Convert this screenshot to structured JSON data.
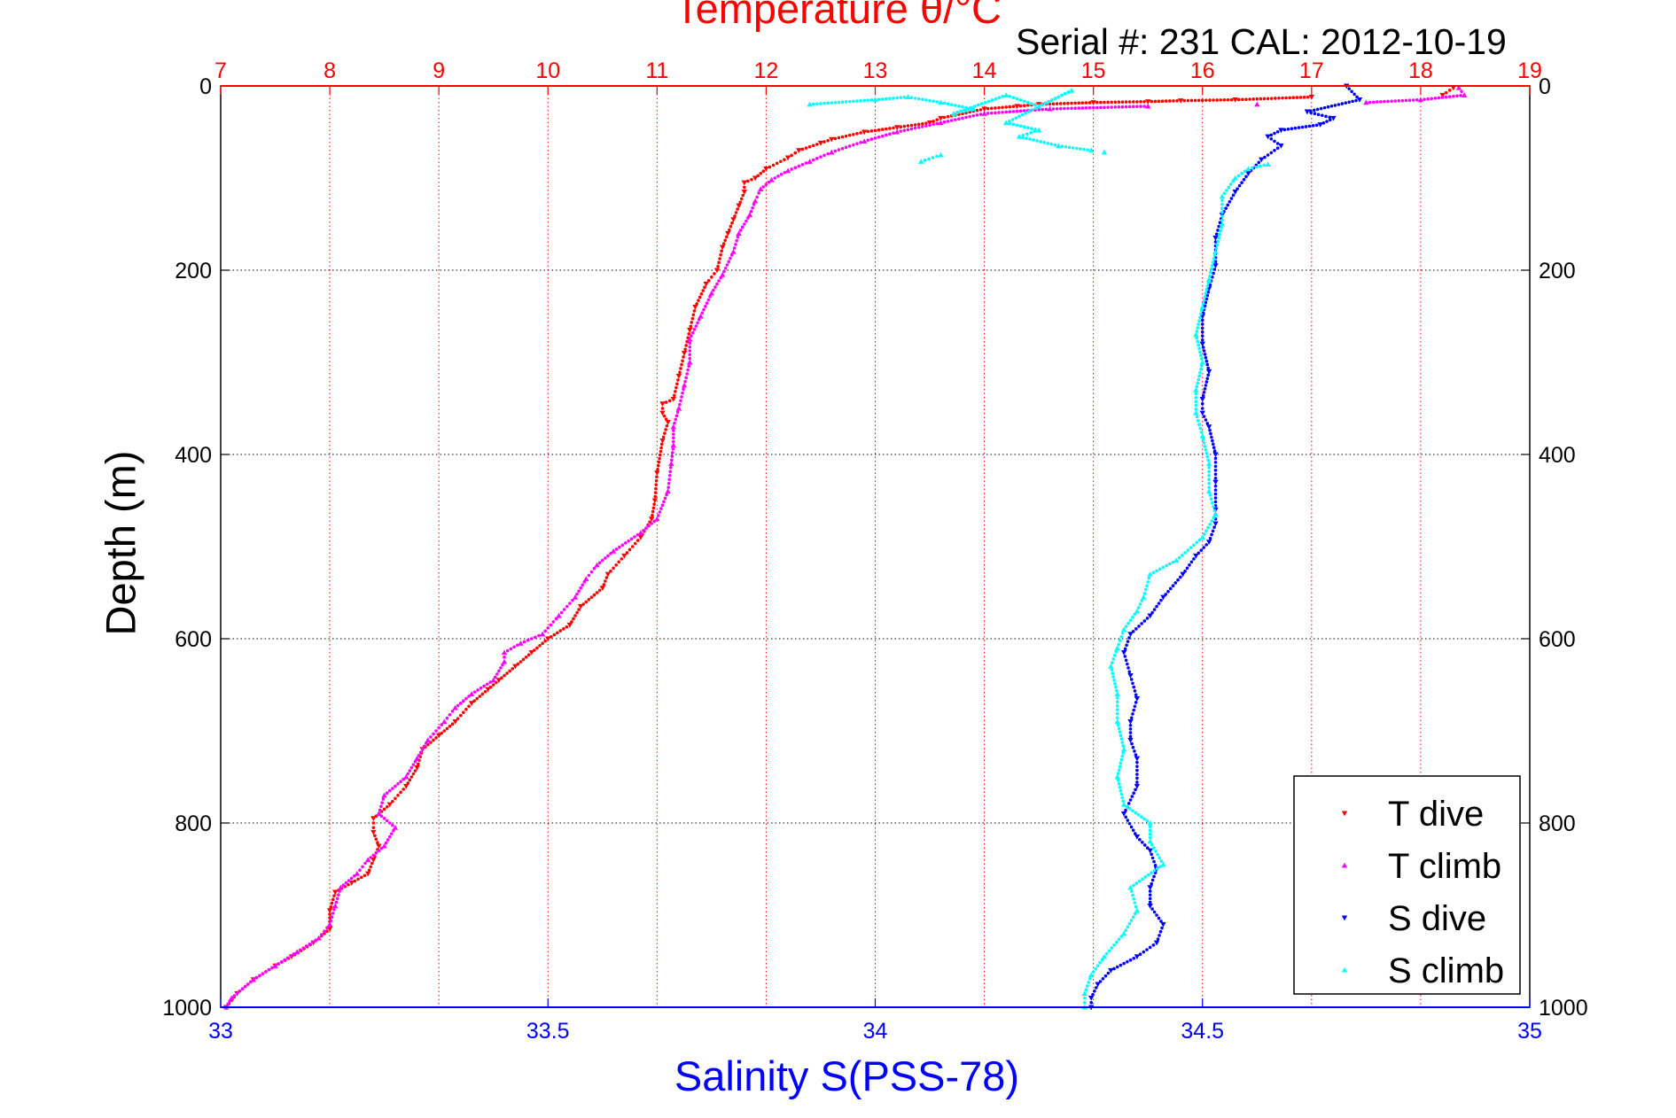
{
  "chart_data": {
    "type": "scatter",
    "title_temperature": "Temperature θ/°C",
    "serial_label": "Serial #: 231  CAL: 2012-10-19",
    "ylabel": "Depth (m)",
    "xlabel_bottom": "Salinity S(PSS-78)",
    "ylim": [
      0,
      1000
    ],
    "y_reversed": true,
    "y_ticks": [
      0,
      200,
      400,
      600,
      800,
      1000
    ],
    "xlim_temperature": [
      7,
      19
    ],
    "x_ticks_temperature": [
      7,
      8,
      9,
      10,
      11,
      12,
      13,
      14,
      15,
      16,
      17,
      18,
      19
    ],
    "xlim_salinity": [
      33,
      35
    ],
    "x_ticks_salinity": [
      33,
      33.5,
      34,
      34.5,
      35
    ],
    "grid": true,
    "legend_position": "bottom-right",
    "series": [
      {
        "name": "T dive",
        "axis": "temperature",
        "color": "#ff0000",
        "marker": "triangle-down",
        "points": [
          [
            18.3,
            2
          ],
          [
            18.2,
            10
          ],
          [
            17.0,
            12
          ],
          [
            16.3,
            15
          ],
          [
            15.8,
            16
          ],
          [
            15.5,
            17
          ],
          [
            15.0,
            18
          ],
          [
            14.5,
            20
          ],
          [
            14.3,
            22
          ],
          [
            14.0,
            25
          ],
          [
            13.6,
            35
          ],
          [
            13.5,
            40
          ],
          [
            13.2,
            45
          ],
          [
            12.9,
            50
          ],
          [
            12.6,
            58
          ],
          [
            12.5,
            62
          ],
          [
            12.3,
            70
          ],
          [
            12.2,
            78
          ],
          [
            12.0,
            90
          ],
          [
            11.9,
            100
          ],
          [
            11.8,
            105
          ],
          [
            11.8,
            115
          ],
          [
            11.75,
            130
          ],
          [
            11.7,
            145
          ],
          [
            11.65,
            160
          ],
          [
            11.6,
            175
          ],
          [
            11.55,
            200
          ],
          [
            11.45,
            215
          ],
          [
            11.35,
            240
          ],
          [
            11.3,
            265
          ],
          [
            11.25,
            290
          ],
          [
            11.2,
            315
          ],
          [
            11.15,
            340
          ],
          [
            11.05,
            345
          ],
          [
            11.05,
            355
          ],
          [
            11.1,
            365
          ],
          [
            11.05,
            385
          ],
          [
            11.0,
            420
          ],
          [
            10.98,
            450
          ],
          [
            10.95,
            470
          ],
          [
            10.85,
            490
          ],
          [
            10.7,
            510
          ],
          [
            10.55,
            530
          ],
          [
            10.5,
            545
          ],
          [
            10.3,
            565
          ],
          [
            10.2,
            585
          ],
          [
            10.0,
            600
          ],
          [
            9.85,
            615
          ],
          [
            9.7,
            630
          ],
          [
            9.55,
            645
          ],
          [
            9.45,
            655
          ],
          [
            9.3,
            670
          ],
          [
            9.15,
            690
          ],
          [
            9.0,
            705
          ],
          [
            8.85,
            720
          ],
          [
            8.8,
            740
          ],
          [
            8.7,
            760
          ],
          [
            8.55,
            780
          ],
          [
            8.4,
            795
          ],
          [
            8.4,
            810
          ],
          [
            8.45,
            825
          ],
          [
            8.4,
            840
          ],
          [
            8.35,
            855
          ],
          [
            8.2,
            865
          ],
          [
            8.05,
            875
          ],
          [
            8.0,
            895
          ],
          [
            8.0,
            915
          ],
          [
            7.85,
            930
          ],
          [
            7.65,
            945
          ],
          [
            7.5,
            955
          ],
          [
            7.3,
            970
          ],
          [
            7.15,
            985
          ],
          [
            7.05,
            1000
          ]
        ]
      },
      {
        "name": "T climb",
        "axis": "temperature",
        "color": "#ff00ff",
        "marker": "triangle-up",
        "points": [
          [
            18.35,
            2
          ],
          [
            18.4,
            10
          ],
          [
            18.0,
            15
          ],
          [
            17.5,
            18
          ],
          [
            16.5,
            20
          ],
          [
            15.5,
            22
          ],
          [
            14.6,
            25
          ],
          [
            14.0,
            30
          ],
          [
            13.6,
            40
          ],
          [
            13.2,
            50
          ],
          [
            12.9,
            60
          ],
          [
            12.6,
            72
          ],
          [
            12.4,
            82
          ],
          [
            12.2,
            92
          ],
          [
            12.05,
            102
          ],
          [
            11.95,
            112
          ],
          [
            11.9,
            125
          ],
          [
            11.85,
            140
          ],
          [
            11.75,
            160
          ],
          [
            11.7,
            180
          ],
          [
            11.6,
            205
          ],
          [
            11.5,
            225
          ],
          [
            11.4,
            250
          ],
          [
            11.3,
            275
          ],
          [
            11.3,
            300
          ],
          [
            11.25,
            325
          ],
          [
            11.2,
            350
          ],
          [
            11.15,
            370
          ],
          [
            11.15,
            390
          ],
          [
            11.13,
            410
          ],
          [
            11.1,
            440
          ],
          [
            11.0,
            470
          ],
          [
            10.85,
            485
          ],
          [
            10.6,
            505
          ],
          [
            10.45,
            520
          ],
          [
            10.35,
            535
          ],
          [
            10.25,
            555
          ],
          [
            10.1,
            575
          ],
          [
            9.95,
            595
          ],
          [
            9.75,
            605
          ],
          [
            9.6,
            615
          ],
          [
            9.6,
            625
          ],
          [
            9.5,
            645
          ],
          [
            9.3,
            660
          ],
          [
            9.15,
            675
          ],
          [
            9.05,
            690
          ],
          [
            8.9,
            710
          ],
          [
            8.8,
            730
          ],
          [
            8.7,
            750
          ],
          [
            8.5,
            770
          ],
          [
            8.45,
            790
          ],
          [
            8.6,
            805
          ],
          [
            8.5,
            825
          ],
          [
            8.35,
            840
          ],
          [
            8.25,
            855
          ],
          [
            8.1,
            870
          ],
          [
            8.05,
            890
          ],
          [
            8.0,
            910
          ],
          [
            7.9,
            925
          ],
          [
            7.7,
            940
          ],
          [
            7.5,
            955
          ],
          [
            7.3,
            970
          ],
          [
            7.1,
            990
          ],
          [
            7.05,
            1000
          ]
        ]
      },
      {
        "name": "S dive",
        "axis": "salinity",
        "color": "#0000ff",
        "marker": "triangle-down",
        "points": [
          [
            34.72,
            0
          ],
          [
            34.74,
            15
          ],
          [
            34.66,
            28
          ],
          [
            34.7,
            35
          ],
          [
            34.68,
            42
          ],
          [
            34.62,
            48
          ],
          [
            34.6,
            55
          ],
          [
            34.62,
            65
          ],
          [
            34.59,
            80
          ],
          [
            34.57,
            95
          ],
          [
            34.55,
            115
          ],
          [
            34.53,
            140
          ],
          [
            34.52,
            165
          ],
          [
            34.52,
            195
          ],
          [
            34.51,
            220
          ],
          [
            34.5,
            250
          ],
          [
            34.5,
            280
          ],
          [
            34.51,
            310
          ],
          [
            34.5,
            340
          ],
          [
            34.5,
            355
          ],
          [
            34.51,
            370
          ],
          [
            34.52,
            400
          ],
          [
            34.52,
            430
          ],
          [
            34.52,
            460
          ],
          [
            34.52,
            475
          ],
          [
            34.51,
            495
          ],
          [
            34.49,
            510
          ],
          [
            34.47,
            530
          ],
          [
            34.44,
            555
          ],
          [
            34.42,
            575
          ],
          [
            34.39,
            595
          ],
          [
            34.38,
            615
          ],
          [
            34.39,
            640
          ],
          [
            34.4,
            665
          ],
          [
            34.39,
            690
          ],
          [
            34.39,
            710
          ],
          [
            34.4,
            730
          ],
          [
            34.4,
            760
          ],
          [
            34.38,
            790
          ],
          [
            34.4,
            815
          ],
          [
            34.42,
            830
          ],
          [
            34.43,
            850
          ],
          [
            34.42,
            870
          ],
          [
            34.42,
            890
          ],
          [
            34.44,
            910
          ],
          [
            34.43,
            930
          ],
          [
            34.4,
            945
          ],
          [
            34.36,
            960
          ],
          [
            34.34,
            975
          ],
          [
            34.33,
            990
          ],
          [
            34.33,
            1000
          ]
        ]
      },
      {
        "name": "S climb",
        "axis": "salinity",
        "color": "#00ffff",
        "marker": "triangle-up",
        "points": [
          [
            33.9,
            20
          ],
          [
            34.0,
            15
          ],
          [
            34.05,
            12
          ],
          [
            34.1,
            18
          ],
          [
            34.15,
            25
          ],
          [
            34.12,
            30
          ],
          [
            34.2,
            10
          ],
          [
            34.25,
            22
          ],
          [
            34.3,
            5
          ],
          [
            34.2,
            40
          ],
          [
            34.25,
            48
          ],
          [
            34.22,
            55
          ],
          [
            34.28,
            65
          ],
          [
            34.33,
            70
          ],
          [
            34.1,
            75
          ],
          [
            34.07,
            82
          ],
          [
            34.35,
            72
          ],
          [
            34.6,
            85
          ],
          [
            34.57,
            90
          ],
          [
            34.55,
            100
          ],
          [
            34.53,
            120
          ],
          [
            34.53,
            150
          ],
          [
            34.52,
            180
          ],
          [
            34.51,
            210
          ],
          [
            34.5,
            240
          ],
          [
            34.49,
            270
          ],
          [
            34.5,
            300
          ],
          [
            34.49,
            330
          ],
          [
            34.49,
            355
          ],
          [
            34.5,
            380
          ],
          [
            34.51,
            410
          ],
          [
            34.51,
            440
          ],
          [
            34.52,
            465
          ],
          [
            34.5,
            490
          ],
          [
            34.46,
            515
          ],
          [
            34.42,
            530
          ],
          [
            34.41,
            555
          ],
          [
            34.4,
            570
          ],
          [
            34.38,
            590
          ],
          [
            34.37,
            610
          ],
          [
            34.36,
            630
          ],
          [
            34.37,
            660
          ],
          [
            34.37,
            690
          ],
          [
            34.38,
            720
          ],
          [
            34.37,
            750
          ],
          [
            34.38,
            780
          ],
          [
            34.42,
            800
          ],
          [
            34.42,
            820
          ],
          [
            34.44,
            845
          ],
          [
            34.39,
            870
          ],
          [
            34.4,
            895
          ],
          [
            34.38,
            920
          ],
          [
            34.35,
            945
          ],
          [
            34.33,
            965
          ],
          [
            34.32,
            985
          ],
          [
            34.32,
            1000
          ]
        ]
      }
    ]
  }
}
